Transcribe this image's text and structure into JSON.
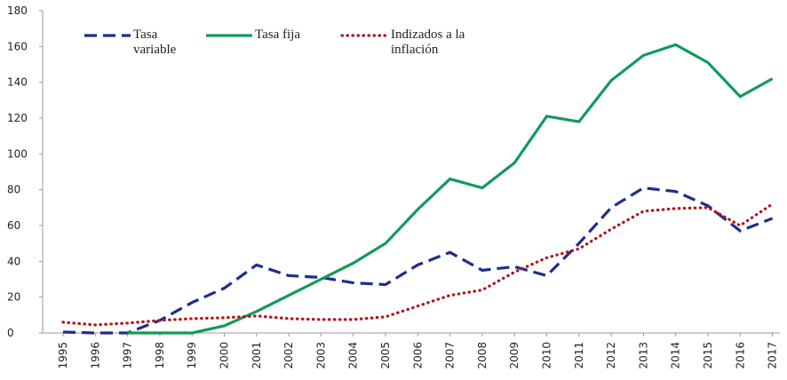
{
  "chart_data": {
    "type": "line",
    "categories": [
      "1995",
      "1996",
      "1997",
      "1998",
      "1999",
      "2000",
      "2001",
      "2002",
      "2003",
      "2004",
      "2005",
      "2006",
      "2007",
      "2008",
      "2009",
      "2010",
      "2011",
      "2012",
      "2013",
      "2014",
      "2015",
      "2016",
      "2017"
    ],
    "series": [
      {
        "name": "Tasa variable",
        "color": "#1f2d8c",
        "dash": "dashed",
        "values": [
          0.5,
          0,
          0,
          7,
          17,
          25,
          38,
          32,
          31,
          28,
          27,
          38,
          45,
          35,
          37,
          32,
          50,
          70,
          81,
          79,
          71,
          57,
          64
        ]
      },
      {
        "name": "Tasa fija",
        "color": "#129a5b",
        "dash": "solid",
        "values": [
          null,
          null,
          0,
          0,
          0,
          4,
          12,
          21,
          30,
          39,
          50,
          69,
          86,
          81,
          95,
          121,
          118,
          141,
          155,
          161,
          151,
          132,
          142
        ]
      },
      {
        "name": "Indizados a la inflación",
        "color": "#b3151b",
        "dash": "dotted",
        "values": [
          6,
          4.5,
          5.5,
          7,
          8,
          8.5,
          9.5,
          8,
          7.5,
          7.5,
          9,
          15,
          21,
          24,
          34,
          42,
          47,
          58,
          68,
          69.5,
          70,
          60,
          72
        ]
      }
    ],
    "ylim": [
      0,
      180
    ],
    "yticks": [
      0,
      20,
      40,
      60,
      80,
      100,
      120,
      140,
      160,
      180
    ],
    "grid": false
  }
}
